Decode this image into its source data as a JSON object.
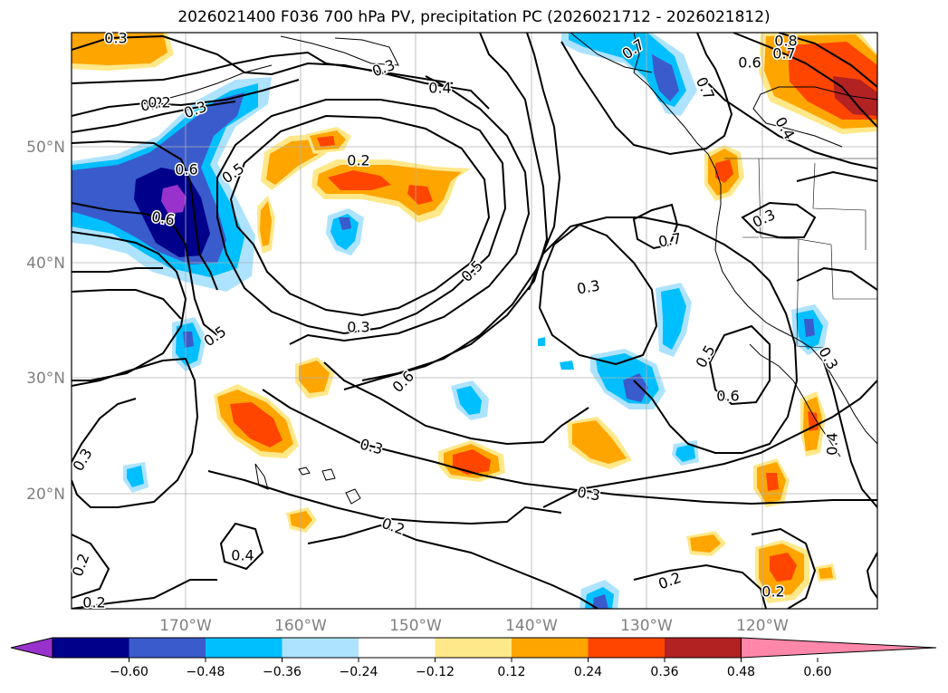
{
  "title": "2026021400 F036 700 hPa PV, precipitation PC (2026021712 - 2026021812)",
  "latitude_labels": [
    "50°N",
    "40°N",
    "30°N",
    "20°N"
  ],
  "longitude_labels": [
    "170°W",
    "160°W",
    "150°W",
    "140°W",
    "130°W",
    "120°W"
  ],
  "contour_labels": [
    "0.3",
    "0.7",
    "0.8",
    "0.7",
    "0.6",
    "0.3",
    "0.4",
    "0.2",
    "0.3",
    "0.2",
    "0.7",
    "0.6",
    "0.5",
    "0.4",
    "0.6",
    "0.5",
    "0.3",
    "0.7",
    "0.3",
    "0.3",
    "0.5",
    "0.5",
    "0.6",
    "0.3",
    "0.4",
    "0.6",
    "0.3",
    "0.2",
    "0.3",
    "0.4",
    "0.2",
    "0.3",
    "0.2",
    "0.2",
    "0.2",
    "0.2"
  ],
  "colorbar": {
    "ticks": [
      "−0.60",
      "−0.48",
      "−0.36",
      "−0.24",
      "−0.12",
      "0.12",
      "0.24",
      "0.36",
      "0.48",
      "0.60"
    ],
    "colors": [
      "#9932cc",
      "#00008b",
      "#3a5bcc",
      "#00bfff",
      "#ade3ff",
      "#ffffff",
      "#ffe88a",
      "#ffa500",
      "#ff4500",
      "#b22222",
      "#ff88aa"
    ]
  },
  "colors": {
    "contour": "#000000",
    "grid": "#b0b0b0",
    "tick_label": "#808080"
  }
}
